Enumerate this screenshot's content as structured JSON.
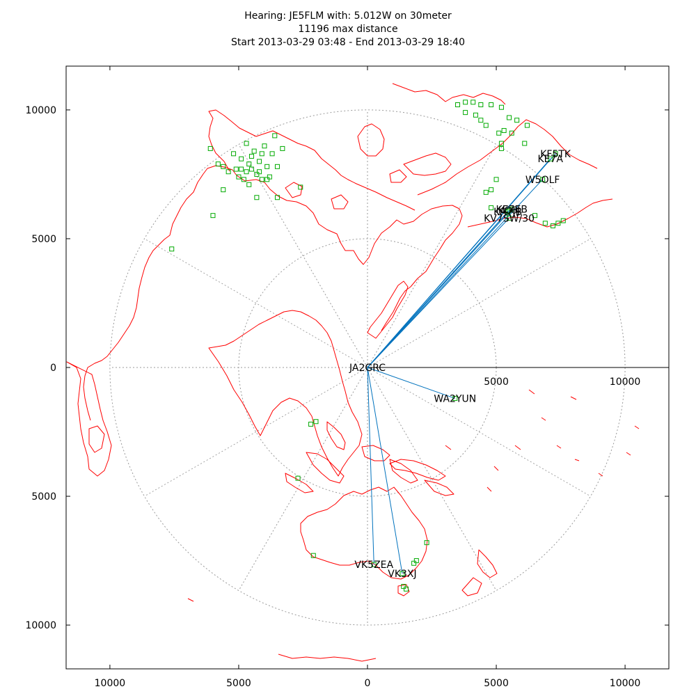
{
  "title": {
    "line1": "Hearing: JE5FLM with: 5.012W on 30meter",
    "line2": "11196 max distance",
    "line3": "Start 2013-03-29 03:48 - End 2013-03-29 18:40"
  },
  "chart_data": {
    "type": "scatter",
    "projection": "polar-azimuthal-equidistant",
    "distance_unit": "km",
    "x_ticks": [
      "10000",
      "5000",
      "0",
      "5000",
      "10000"
    ],
    "y_ticks": [
      "10000",
      "5000",
      "0",
      "5000",
      "10000"
    ],
    "inside_ticks": [
      "5000",
      "10000"
    ],
    "axis_range": [
      -11700,
      11700
    ],
    "range_rings": [
      5000,
      10000
    ],
    "spoke_angles_deg": [
      0,
      30,
      60,
      90,
      120,
      150,
      180,
      210,
      240,
      270,
      300,
      330
    ],
    "colors": {
      "coastline": "#ff0000",
      "path": "#0072bd",
      "station": "#00aa00",
      "grid": "#999999",
      "axis": "#000000"
    },
    "home": {
      "label": "JA2GRC",
      "x": 0,
      "y": 0
    },
    "spots": [
      {
        "label": "KF5TK",
        "x": 7300,
        "y": 8300
      },
      {
        "label": "KE7A",
        "x": 7100,
        "y": 8100
      },
      {
        "label": "W5OLF",
        "x": 6800,
        "y": 7300
      },
      {
        "label": "KE7EB",
        "x": 5600,
        "y": 6150
      },
      {
        "label": "KC6J",
        "x": 5500,
        "y": 6100
      },
      {
        "label": "KA7JB",
        "x": 5450,
        "y": 6050
      },
      {
        "label": "KV7SW/30",
        "x": 5500,
        "y": 5800
      },
      {
        "label": "WA2YUN",
        "x": 3400,
        "y": -1200
      },
      {
        "label": "VK5ZEA",
        "x": 250,
        "y": -7650
      },
      {
        "label": "VK3XJ",
        "x": 1350,
        "y": -8000
      }
    ],
    "other_stations": [
      [
        -6100,
        8500
      ],
      [
        -5800,
        7900
      ],
      [
        -5600,
        7800
      ],
      [
        -5200,
        8300
      ],
      [
        -5100,
        7700
      ],
      [
        -4900,
        8100
      ],
      [
        -4700,
        7600
      ],
      [
        -4600,
        7900
      ],
      [
        -4500,
        8200
      ],
      [
        -4400,
        8400
      ],
      [
        -4300,
        7500
      ],
      [
        -4200,
        8000
      ],
      [
        -4100,
        7300
      ],
      [
        -4000,
        8600
      ],
      [
        -3900,
        7800
      ],
      [
        -3800,
        7400
      ],
      [
        -3700,
        8300
      ],
      [
        -3600,
        9000
      ],
      [
        -3500,
        7800
      ],
      [
        -5400,
        7600
      ],
      [
        -5000,
        7400
      ],
      [
        -4800,
        7300
      ],
      [
        -4600,
        7100
      ],
      [
        -5600,
        6900
      ],
      [
        -4300,
        6600
      ],
      [
        -3500,
        6600
      ],
      [
        -2600,
        7000
      ],
      [
        -3300,
        8500
      ],
      [
        -4700,
        8700
      ],
      [
        -4900,
        7700
      ],
      [
        -4500,
        7700
      ],
      [
        -4200,
        7600
      ],
      [
        -3900,
        7300
      ],
      [
        -4100,
        8300
      ],
      [
        -6000,
        5900
      ],
      [
        -7600,
        4600
      ],
      [
        3500,
        10200
      ],
      [
        3800,
        10300
      ],
      [
        4100,
        10300
      ],
      [
        4400,
        10200
      ],
      [
        4800,
        10200
      ],
      [
        5200,
        10100
      ],
      [
        3800,
        9900
      ],
      [
        4200,
        9800
      ],
      [
        4400,
        9600
      ],
      [
        5500,
        9700
      ],
      [
        5800,
        9600
      ],
      [
        6200,
        9400
      ],
      [
        5100,
        9100
      ],
      [
        5300,
        9200
      ],
      [
        5600,
        9100
      ],
      [
        4600,
        9400
      ],
      [
        5200,
        8500
      ],
      [
        5200,
        8700
      ],
      [
        6100,
        8700
      ],
      [
        5000,
        7300
      ],
      [
        4800,
        6900
      ],
      [
        4600,
        6800
      ],
      [
        4800,
        6200
      ],
      [
        6500,
        5900
      ],
      [
        6900,
        5600
      ],
      [
        7200,
        5500
      ],
      [
        7600,
        5700
      ],
      [
        7400,
        5600
      ],
      [
        -2700,
        -4300
      ],
      [
        -2200,
        -2200
      ],
      [
        -2000,
        -2100
      ],
      [
        2300,
        -6800
      ],
      [
        1900,
        -7500
      ],
      [
        1800,
        -7600
      ],
      [
        -2100,
        -7300
      ],
      [
        1400,
        -8500
      ],
      [
        1500,
        -8600
      ]
    ]
  }
}
